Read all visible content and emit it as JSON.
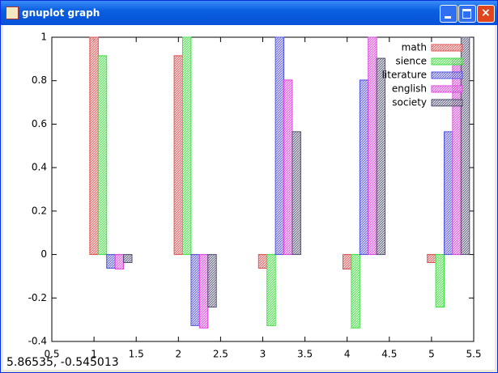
{
  "window": {
    "title": "gnuplot graph",
    "status": "5.86535, -0.545013"
  },
  "chart_data": {
    "type": "bar",
    "xlim": [
      0.5,
      5.5
    ],
    "xticks": [
      0.5,
      1,
      1.5,
      2,
      2.5,
      3,
      3.5,
      4,
      4.5,
      5,
      5.5
    ],
    "ylim": [
      -0.4,
      1
    ],
    "yticks": [
      -0.4,
      -0.2,
      0,
      0.2,
      0.4,
      0.6,
      0.8,
      1
    ],
    "legend": "top-right",
    "series": [
      {
        "name": "math",
        "color": "#e05050",
        "x": [
          1,
          2,
          3,
          4,
          5
        ],
        "values": [
          1,
          0.915,
          -0.063,
          -0.067,
          -0.037
        ]
      },
      {
        "name": "sience",
        "color": "#40e040",
        "x": [
          1.1,
          2.1,
          3.1,
          4.1,
          5.1
        ],
        "values": [
          0.915,
          1,
          -0.327,
          -0.338,
          -0.242
        ]
      },
      {
        "name": "literature",
        "color": "#5050e0",
        "x": [
          1.2,
          2.2,
          3.2,
          4.2,
          5.2
        ],
        "values": [
          -0.063,
          -0.327,
          1,
          0.803,
          0.565
        ]
      },
      {
        "name": "english",
        "color": "#e040e0",
        "x": [
          1.3,
          2.3,
          3.3,
          4.3,
          5.3
        ],
        "values": [
          -0.067,
          -0.338,
          0.803,
          1,
          0.903
        ]
      },
      {
        "name": "society",
        "color": "#505070",
        "x": [
          1.4,
          2.4,
          3.4,
          4.4,
          5.4
        ],
        "values": [
          -0.037,
          -0.242,
          0.565,
          0.903,
          1
        ]
      }
    ]
  }
}
